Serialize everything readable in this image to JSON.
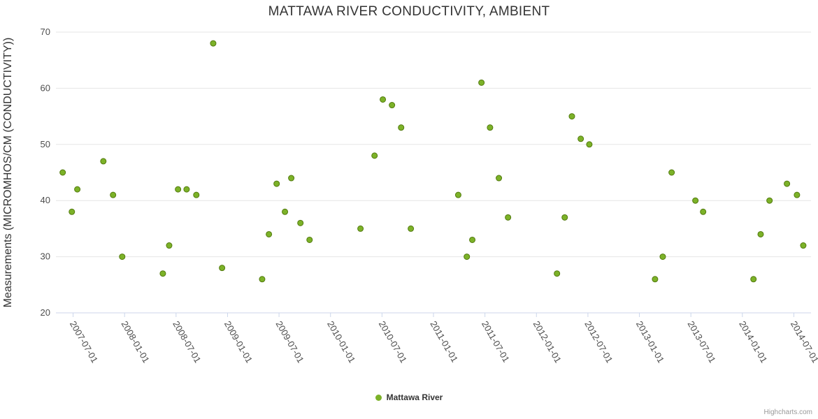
{
  "credits": "Highcharts.com",
  "legend": {
    "items": [
      {
        "label": "Mattawa River",
        "color": "#7cb228"
      }
    ]
  },
  "colors": {
    "grid": "#e6e6e6",
    "axis": "#ccd6eb",
    "labels": "#4d4d4d",
    "title": "#333333",
    "marker_fill": "#7cb228",
    "marker_stroke": "#527a0e"
  },
  "chart_data": {
    "type": "scatter",
    "title": "MATTAWA RIVER CONDUCTIVITY, AMBIENT",
    "xlabel": "",
    "ylabel": "Measurements (MICROMHOS/CM (CONDUCTIVITY))",
    "ylim": [
      20,
      70
    ],
    "y_ticks": [
      20,
      30,
      40,
      50,
      60,
      70
    ],
    "x_ticks": [
      "2007-07-01",
      "2008-01-01",
      "2008-07-01",
      "2009-01-01",
      "2009-07-01",
      "2010-01-01",
      "2010-07-01",
      "2011-01-01",
      "2011-07-01",
      "2012-01-01",
      "2012-07-01",
      "2013-01-01",
      "2013-07-01",
      "2014-01-01",
      "2014-07-01"
    ],
    "x_min": "2007-05-01",
    "x_max": "2014-09-01",
    "grid": "horizontal",
    "legend_position": "bottom-center",
    "series": [
      {
        "name": "Mattawa River",
        "color": "#7cb228",
        "marker_stroke": "#527a0e",
        "points": [
          {
            "x": "2007-05-25",
            "y": 45
          },
          {
            "x": "2007-06-27",
            "y": 38
          },
          {
            "x": "2007-07-16",
            "y": 42
          },
          {
            "x": "2007-10-17",
            "y": 47
          },
          {
            "x": "2007-11-21",
            "y": 41
          },
          {
            "x": "2007-12-23",
            "y": 30
          },
          {
            "x": "2008-05-15",
            "y": 27
          },
          {
            "x": "2008-06-07",
            "y": 32
          },
          {
            "x": "2008-07-08",
            "y": 42
          },
          {
            "x": "2008-08-08",
            "y": 42
          },
          {
            "x": "2008-09-12",
            "y": 41
          },
          {
            "x": "2008-11-11",
            "y": 68
          },
          {
            "x": "2008-12-12",
            "y": 28
          },
          {
            "x": "2009-05-02",
            "y": 26
          },
          {
            "x": "2009-05-26",
            "y": 34
          },
          {
            "x": "2009-06-23",
            "y": 43
          },
          {
            "x": "2009-07-22",
            "y": 38
          },
          {
            "x": "2009-08-14",
            "y": 44
          },
          {
            "x": "2009-09-16",
            "y": 36
          },
          {
            "x": "2009-10-18",
            "y": 33
          },
          {
            "x": "2010-04-16",
            "y": 35
          },
          {
            "x": "2010-06-05",
            "y": 48
          },
          {
            "x": "2010-07-04",
            "y": 58
          },
          {
            "x": "2010-08-06",
            "y": 57
          },
          {
            "x": "2010-09-08",
            "y": 53
          },
          {
            "x": "2010-10-12",
            "y": 35
          },
          {
            "x": "2011-03-28",
            "y": 41
          },
          {
            "x": "2011-04-28",
            "y": 30
          },
          {
            "x": "2011-05-17",
            "y": 33
          },
          {
            "x": "2011-06-19",
            "y": 61
          },
          {
            "x": "2011-07-19",
            "y": 53
          },
          {
            "x": "2011-08-20",
            "y": 44
          },
          {
            "x": "2011-09-22",
            "y": 37
          },
          {
            "x": "2012-03-13",
            "y": 27
          },
          {
            "x": "2012-04-10",
            "y": 37
          },
          {
            "x": "2012-05-05",
            "y": 55
          },
          {
            "x": "2012-06-06",
            "y": 51
          },
          {
            "x": "2012-07-06",
            "y": 50
          },
          {
            "x": "2013-02-26",
            "y": 26
          },
          {
            "x": "2013-03-23",
            "y": 30
          },
          {
            "x": "2013-04-24",
            "y": 45
          },
          {
            "x": "2013-07-17",
            "y": 40
          },
          {
            "x": "2013-08-14",
            "y": 38
          },
          {
            "x": "2014-02-10",
            "y": 26
          },
          {
            "x": "2014-03-05",
            "y": 34
          },
          {
            "x": "2014-04-06",
            "y": 40
          },
          {
            "x": "2014-06-07",
            "y": 43
          },
          {
            "x": "2014-07-12",
            "y": 41
          },
          {
            "x": "2014-08-04",
            "y": 32
          }
        ]
      }
    ]
  }
}
